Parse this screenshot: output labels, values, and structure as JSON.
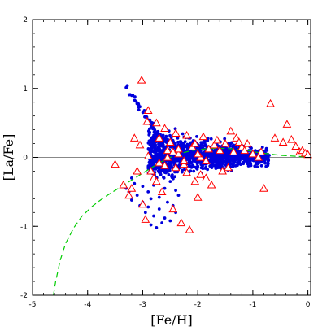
{
  "chart_data": {
    "type": "scatter",
    "title": "",
    "xlabel": "[Fe/H]",
    "ylabel": "[La/Fe]",
    "xlim": [
      -5,
      0.05
    ],
    "ylim": [
      -2,
      2
    ],
    "x_ticks": [
      -5,
      -4,
      -3,
      -2,
      -1,
      0
    ],
    "y_ticks": [
      -2,
      -1,
      0,
      1,
      2
    ],
    "x_minor_step": 0.2,
    "y_minor_step": 0.2,
    "reference_line_y": 0,
    "colors": {
      "model_points": "#0000dd",
      "observations": "#ff0000",
      "model_curve": "#00cc00",
      "reference_line": "#888888",
      "axes": "#000000"
    },
    "model_curve": {
      "style": "dashed",
      "x": [
        -4.62,
        -4.58,
        -4.5,
        -4.4,
        -4.25,
        -4.1,
        -3.9,
        -3.7,
        -3.5,
        -3.3,
        -3.1,
        -2.9,
        -2.7,
        -2.5,
        -2.3,
        -2.1,
        -1.9,
        -1.7,
        -1.5,
        -1.3,
        -1.1,
        -0.9,
        -0.7,
        -0.5,
        -0.3,
        -0.1,
        0.0
      ],
      "y": [
        -2.0,
        -1.8,
        -1.5,
        -1.25,
        -1.02,
        -0.85,
        -0.7,
        -0.58,
        -0.48,
        -0.38,
        -0.28,
        -0.18,
        -0.08,
        0.0,
        0.06,
        0.1,
        0.12,
        0.13,
        0.13,
        0.12,
        0.1,
        0.07,
        0.05,
        0.03,
        0.02,
        0.01,
        0.0
      ]
    },
    "model_points_cloud": {
      "marker": "dot",
      "bulk": {
        "x_min": -2.9,
        "x_max": -0.7,
        "y_center_left": 0.05,
        "y_center_right": 0.0,
        "spread_left": 0.35,
        "spread_right": 0.09
      },
      "upper_branch": {
        "x": [
          -3.3,
          -3.2,
          -3.1,
          -3.0,
          -2.9,
          -2.8,
          -2.7,
          -2.6,
          -2.5,
          -2.4
        ],
        "y": [
          1.02,
          0.9,
          0.78,
          0.66,
          0.55,
          0.44,
          0.34,
          0.26,
          0.2,
          0.15
        ]
      },
      "lower_points": {
        "x": [
          -3.3,
          -3.25,
          -3.2,
          -3.1,
          -3.05,
          -3.0,
          -2.95,
          -2.9,
          -2.85,
          -2.8,
          -2.7,
          -2.65,
          -2.6,
          -2.55,
          -2.5,
          -2.45,
          -2.4,
          -2.35,
          -3.15,
          -2.75,
          -3.0,
          -2.9,
          -2.6,
          -2.5,
          -2.4,
          -3.2,
          -2.7,
          -2.85
        ],
        "y": [
          -0.45,
          -0.5,
          -0.62,
          -0.55,
          -0.7,
          -0.65,
          -0.8,
          -0.72,
          -0.6,
          -0.85,
          -0.75,
          -0.95,
          -0.88,
          -0.65,
          -0.92,
          -0.7,
          -0.8,
          -0.55,
          -0.38,
          -1.02,
          -0.42,
          -0.5,
          -0.45,
          -0.35,
          -0.48,
          -0.3,
          -0.58,
          -0.98
        ]
      }
    },
    "observations": {
      "marker": "open-triangle",
      "x": [
        -3.02,
        -2.9,
        -2.92,
        -3.15,
        -3.05,
        -3.2,
        -2.75,
        -2.6,
        -2.7,
        -2.55,
        -2.5,
        -2.4,
        -2.35,
        -2.25,
        -2.2,
        -2.1,
        -2.05,
        -1.95,
        -1.9,
        -1.85,
        -1.8,
        -1.7,
        -1.65,
        -1.6,
        -1.5,
        -1.4,
        -1.3,
        -1.25,
        -1.35,
        -1.2,
        -1.1,
        -1.0,
        -0.9,
        -0.85,
        -0.8,
        -0.68,
        -0.6,
        -0.45,
        -0.38,
        -0.3,
        -0.22,
        -0.15,
        -0.1,
        -0.05,
        0.0,
        -3.35,
        -3.5,
        -3.25,
        -3.0,
        -2.95,
        -2.8,
        -2.85,
        -2.65,
        -2.45,
        -2.3,
        -2.15,
        -2.0,
        -1.75,
        -1.55,
        -1.45,
        -2.55,
        -2.4,
        -2.2,
        -2.05,
        -1.85,
        -2.9,
        -2.7,
        -2.45,
        -2.6,
        -2.75,
        -3.1,
        -1.15,
        -2.35,
        -2.25,
        -2.0,
        -1.95
      ],
      "y": [
        1.12,
        0.68,
        0.52,
        0.28,
        0.18,
        -0.45,
        0.5,
        0.42,
        0.28,
        0.1,
        0.22,
        0.35,
        0.05,
        -0.1,
        0.32,
        0.15,
        0.2,
        0.0,
        0.3,
        -0.05,
        0.12,
        0.18,
        0.25,
        0.1,
        0.2,
        0.38,
        0.28,
        0.22,
        0.08,
        0.15,
        0.2,
        0.05,
        0.0,
        0.08,
        -0.45,
        0.78,
        0.28,
        0.22,
        0.48,
        0.26,
        0.16,
        0.08,
        0.1,
        0.06,
        0.04,
        -0.4,
        -0.1,
        -0.55,
        -0.68,
        -0.9,
        -0.3,
        -0.2,
        -0.5,
        -0.75,
        -0.95,
        -1.05,
        -0.58,
        -0.4,
        -0.2,
        -0.15,
        0.0,
        -0.15,
        -0.22,
        -0.35,
        -0.3,
        0.02,
        -0.08,
        0.08,
        -0.12,
        -0.35,
        -0.2,
        0.1,
        0.12,
        -0.05,
        0.05,
        -0.25
      ]
    }
  }
}
